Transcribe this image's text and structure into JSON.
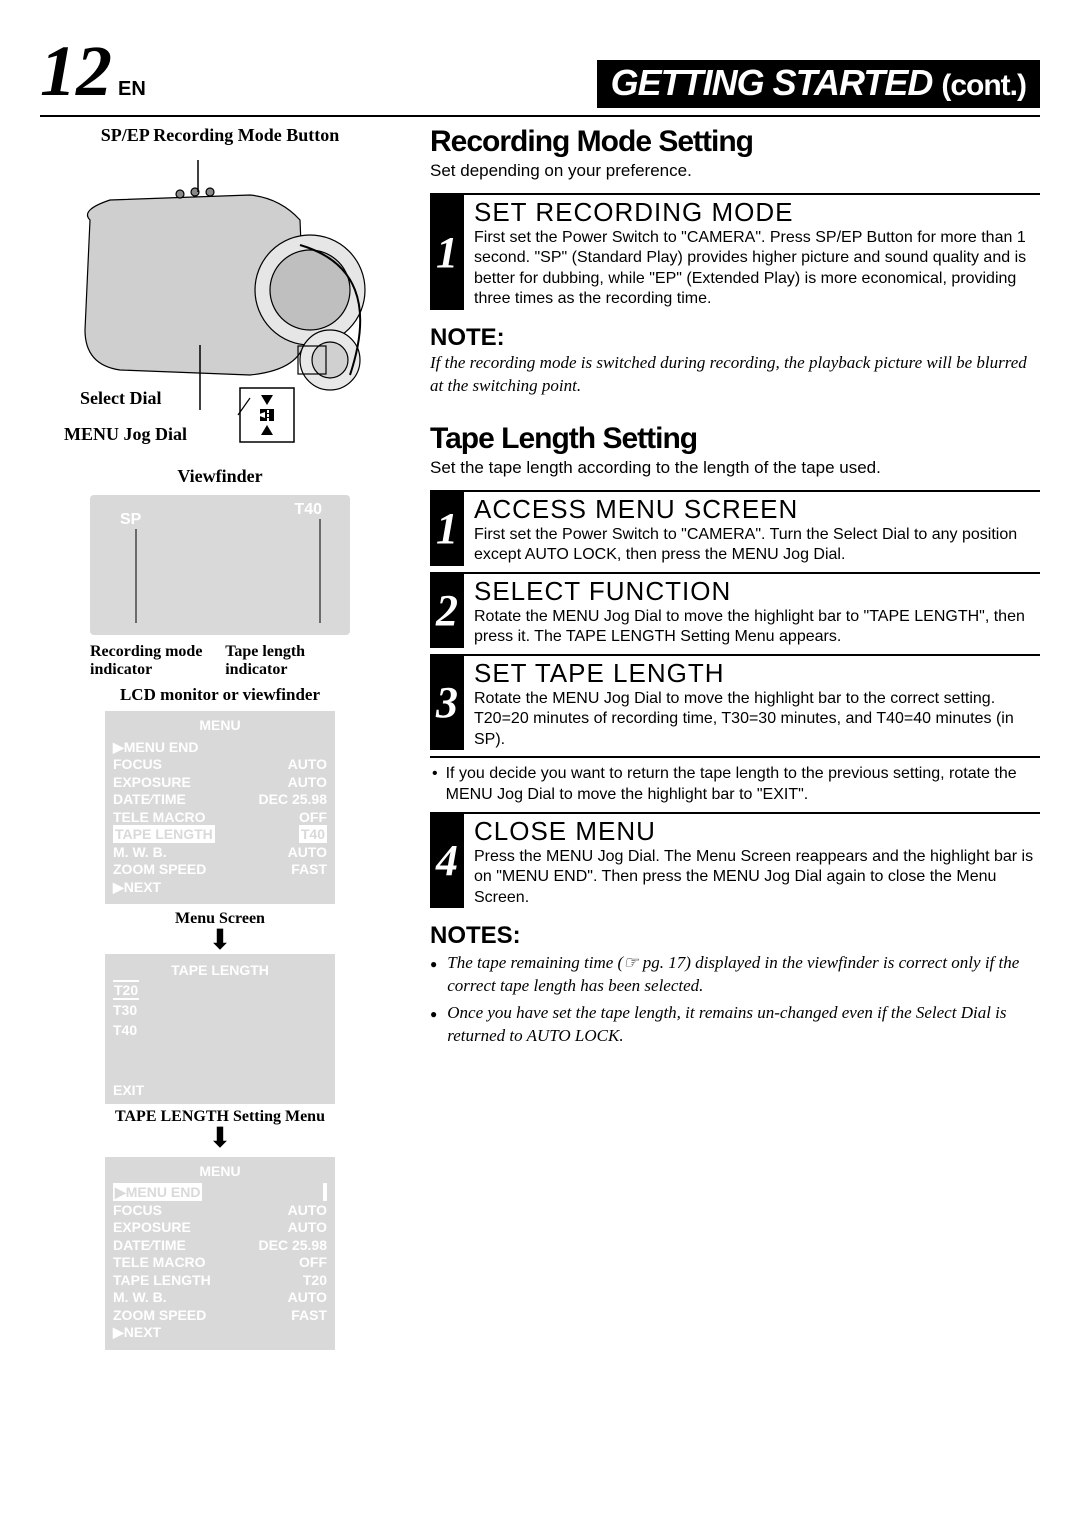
{
  "header": {
    "page_number": "12",
    "lang": "EN",
    "banner_main": "GETTING STARTED",
    "banner_cont": "(cont.)"
  },
  "left": {
    "top_label": "SP/EP Recording Mode Button",
    "select_dial": "Select Dial",
    "menu_jog": "MENU Jog Dial",
    "viewfinder": "Viewfinder",
    "vf_sp": "SP",
    "vf_t40": "T40",
    "rec_mode_ind": "Recording mode indicator",
    "tape_len_ind": "Tape length indicator",
    "lcd_caption": "LCD monitor or viewfinder",
    "menu1": {
      "title": "MENU",
      "rows": [
        {
          "l": "▶MENU END",
          "r": ""
        },
        {
          "l": "FOCUS",
          "r": "AUTO"
        },
        {
          "l": "EXPOSURE",
          "r": "AUTO"
        },
        {
          "l": "DATE⁄TIME",
          "r": "DEC 25.98"
        },
        {
          "l": "TELE  MACRO",
          "r": "OFF"
        },
        {
          "l": "TAPE  LENGTH",
          "r": "T40",
          "hl": true
        },
        {
          "l": "M. W. B.",
          "r": "AUTO"
        },
        {
          "l": "ZOOM SPEED",
          "r": "FAST"
        },
        {
          "l": "▶NEXT",
          "r": ""
        }
      ]
    },
    "menu_screen_caption": "Menu Screen",
    "tape_menu": {
      "title": "TAPE  LENGTH",
      "opts": [
        "T20",
        "T30",
        "T40"
      ],
      "exit": "EXIT"
    },
    "tape_menu_caption": "TAPE LENGTH Setting Menu",
    "menu2": {
      "title": "MENU",
      "rows": [
        {
          "l": "▶MENU END",
          "r": "",
          "hl": true
        },
        {
          "l": "FOCUS",
          "r": "AUTO"
        },
        {
          "l": "EXPOSURE",
          "r": "AUTO"
        },
        {
          "l": "DATE⁄TIME",
          "r": "DEC 25.98"
        },
        {
          "l": "TELE  MACRO",
          "r": "OFF"
        },
        {
          "l": "TAPE  LENGTH",
          "r": "T20"
        },
        {
          "l": "M. W. B.",
          "r": "AUTO"
        },
        {
          "l": "ZOOM SPEED",
          "r": "FAST"
        },
        {
          "l": "▶NEXT",
          "r": ""
        }
      ]
    }
  },
  "right": {
    "rec_mode_h": "Recording Mode Setting",
    "rec_mode_lead": "Set depending on your preference.",
    "step1_title": "SET RECORDING MODE",
    "step1_text": "First set the Power Switch to \"CAMERA\". Press SP/EP Button for more than 1 second. \"SP\" (Standard Play) provides higher picture and sound quality and is better for dubbing, while \"EP\" (Extended Play) is more economical, providing three times as the recording time.",
    "note_h": "NOTE:",
    "note_body": "If the recording mode is switched during recording, the playback picture will be blurred at the switching point.",
    "tape_h": "Tape Length Setting",
    "tape_lead": "Set the tape length according to the length of the tape used.",
    "t1_title": "ACCESS MENU SCREEN",
    "t1_text": "First set the Power Switch to \"CAMERA\". Turn the Select Dial to any position except AUTO LOCK, then press the MENU Jog Dial.",
    "t2_title": "SELECT FUNCTION",
    "t2_text": "Rotate the MENU Jog Dial to move the highlight bar to \"TAPE LENGTH\", then press it. The TAPE LENGTH Setting Menu appears.",
    "t3_title": "SET TAPE LENGTH",
    "t3_text": "Rotate the MENU Jog Dial to move the highlight bar to the correct setting. T20=20 minutes of recording time, T30=30 minutes, and T40=40 minutes (in SP).",
    "t3_bullet": "If  you decide you want to return the tape length to the previous setting, rotate the MENU Jog Dial to move the highlight bar to \"EXIT\".",
    "t4_title": "CLOSE MENU",
    "t4_text": "Press the MENU Jog Dial. The Menu Screen reappears and the highlight bar is on \"MENU END\". Then press the MENU Jog Dial again to close the Menu Screen.",
    "notes_h": "NOTES:",
    "notes": [
      "The tape remaining time (☞ pg. 17) displayed in the viewfinder is correct only if the correct tape length has been selected.",
      "Once you have set the tape length, it remains un-changed even if the Select Dial is returned to AUTO LOCK."
    ]
  },
  "colors": {
    "bg": "#ffffff",
    "text": "#000000",
    "screen_bg": "#d9d9d9",
    "screen_text": "#ffffff"
  }
}
